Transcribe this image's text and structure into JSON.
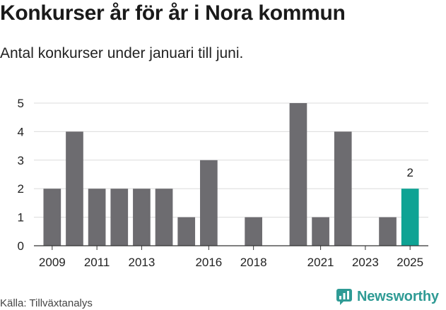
{
  "header": {
    "title": "Konkurser år för år i Nora kommun",
    "subtitle": "Antal konkurser under januari till juni."
  },
  "footer": {
    "source": "Källa: Tillväxtanalys",
    "brand": "Newsworthy"
  },
  "colors": {
    "bar": "#6d6c70",
    "highlight": "#0ea394",
    "grid": "#dcdcdc",
    "axis": "#333333",
    "brand": "#2f9b95"
  },
  "chart_data": {
    "type": "bar",
    "categories": [
      "2009",
      "2010",
      "2011",
      "2012",
      "2013",
      "2014",
      "2015",
      "2016",
      "2017",
      "2018",
      "2019",
      "2020",
      "2021",
      "2022",
      "2023",
      "2024",
      "2025"
    ],
    "values": [
      2,
      4,
      2,
      2,
      2,
      2,
      1,
      3,
      0,
      1,
      0,
      5,
      1,
      4,
      0,
      1,
      2
    ],
    "x_tick_labels": [
      "2009",
      "2011",
      "2013",
      "2016",
      "2018",
      "2021",
      "2023",
      "2025"
    ],
    "y_ticks": [
      0,
      1,
      2,
      3,
      4,
      5
    ],
    "ylim": [
      0,
      5
    ],
    "highlight_category": "2025",
    "data_labels": [
      {
        "category": "2025",
        "text": "2"
      }
    ],
    "grid": true,
    "legend": "none"
  }
}
